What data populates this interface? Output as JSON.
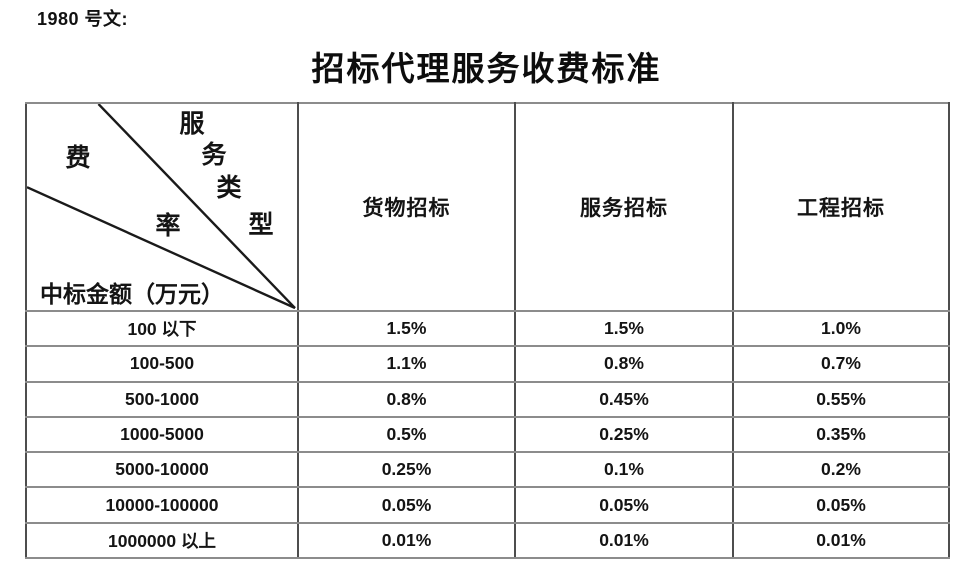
{
  "doc_label": "1980 号文:",
  "title": "招标代理服务收费标准",
  "table": {
    "corner": {
      "type_chars": [
        "服",
        "务",
        "类",
        "型"
      ],
      "rate_chars": [
        "费",
        "率"
      ],
      "row_header": "中标金额（万元）"
    },
    "columns": [
      "货物招标",
      "服务招标",
      "工程招标"
    ],
    "rows": [
      {
        "label": "100 以下",
        "values": [
          "1.5%",
          "1.5%",
          "1.0%"
        ]
      },
      {
        "label": "100-500",
        "values": [
          "1.1%",
          "0.8%",
          "0.7%"
        ]
      },
      {
        "label": "500-1000",
        "values": [
          "0.8%",
          "0.45%",
          "0.55%"
        ]
      },
      {
        "label": "1000-5000",
        "values": [
          "0.5%",
          "0.25%",
          "0.35%"
        ]
      },
      {
        "label": "5000-10000",
        "values": [
          "0.25%",
          "0.1%",
          "0.2%"
        ]
      },
      {
        "label": "10000-100000",
        "values": [
          "0.05%",
          "0.05%",
          "0.05%"
        ]
      },
      {
        "label": "1000000 以上",
        "values": [
          "0.01%",
          "0.01%",
          "0.01%"
        ]
      }
    ]
  },
  "colors": {
    "text": "#141414",
    "h_border": "#8c8c8c",
    "v_border": "#4d4d4d",
    "diagonal_line": "#1a1a1a"
  }
}
